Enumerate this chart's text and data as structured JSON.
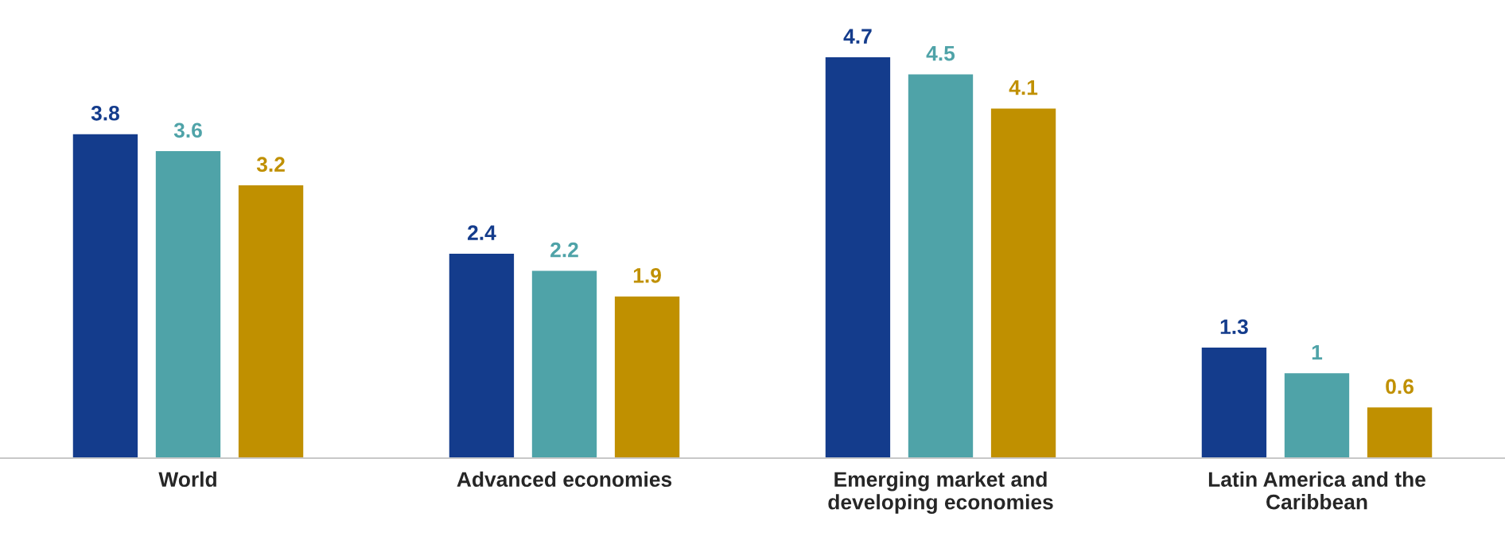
{
  "chart_data": {
    "type": "bar",
    "categories": [
      "World",
      "Advanced economies",
      "Emerging market and\ndeveloping economies",
      "Latin America and the\nCaribbean"
    ],
    "series": [
      {
        "color": "#143c8c",
        "values": [
          3.8,
          2.4,
          4.7,
          1.3
        ]
      },
      {
        "color": "#4fa3a8",
        "values": [
          3.6,
          2.2,
          4.5,
          1
        ]
      },
      {
        "color": "#c09000",
        "values": [
          3.2,
          1.9,
          4.1,
          0.6
        ]
      }
    ],
    "data_labels": true,
    "grid": false,
    "legend": false
  }
}
